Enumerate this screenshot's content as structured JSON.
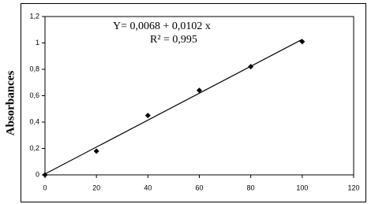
{
  "chart_data": {
    "type": "scatter",
    "y_label": "Absorbances",
    "annotations": [
      "Y= 0,0068 + 0,0102 x",
      "R² = 0,995"
    ],
    "x": [
      0,
      20,
      40,
      60,
      80,
      100
    ],
    "values": [
      0,
      0.18,
      0.45,
      0.64,
      0.82,
      1.01
    ],
    "color": "#000000",
    "trendline": {
      "intercept": 0.0068,
      "slope": 0.0102,
      "color": "#000000"
    },
    "xlim": [
      0,
      120
    ],
    "xticks": [
      0,
      20,
      40,
      60,
      80,
      100,
      120
    ],
    "ylim": [
      0,
      1.2
    ],
    "yticks": [
      0,
      {
        "value": 0.2,
        "label": "0,2"
      },
      {
        "value": 0.4,
        "label": "0,4"
      },
      {
        "value": 0.6,
        "label": "0,6"
      },
      {
        "value": 0.8,
        "label": "0,8"
      },
      1,
      {
        "value": 1.2,
        "label": "1,2"
      }
    ],
    "grid": false
  }
}
